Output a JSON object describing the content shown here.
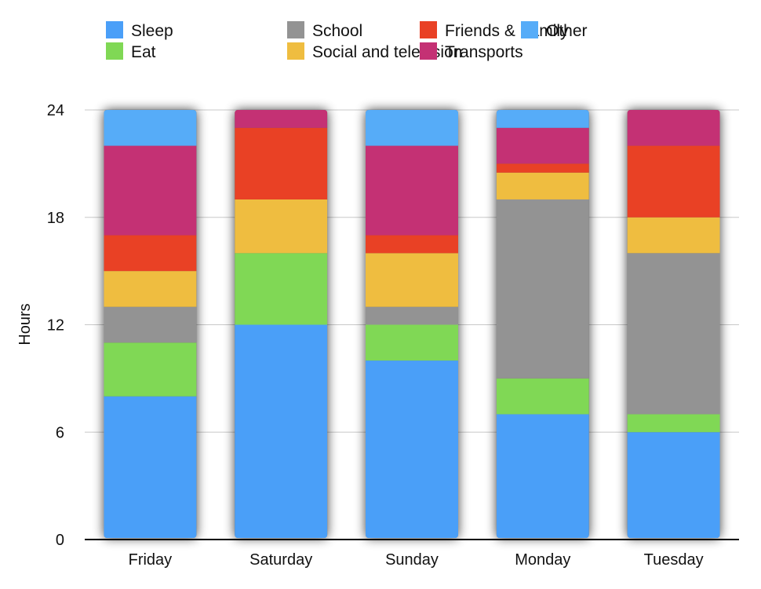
{
  "chart_data": {
    "type": "bar",
    "stacked": true,
    "categories": [
      "Friday",
      "Saturday",
      "Sunday",
      "Monday",
      "Tuesday"
    ],
    "series": [
      {
        "name": "Sleep",
        "color": "#4a9ff8",
        "values": [
          8,
          12,
          10,
          7,
          6
        ]
      },
      {
        "name": "Eat",
        "color": "#80d855",
        "values": [
          3,
          4,
          2,
          2,
          1
        ]
      },
      {
        "name": "School",
        "color": "#939393",
        "values": [
          2,
          0,
          1,
          10,
          9
        ]
      },
      {
        "name": "Social and television",
        "color": "#efbd40",
        "values": [
          2,
          3,
          3,
          1.5,
          2
        ]
      },
      {
        "name": "Friends & Family",
        "color": "#e94125",
        "values": [
          2,
          4,
          1,
          0.5,
          4
        ]
      },
      {
        "name": "Transports",
        "color": "#c43174",
        "values": [
          5,
          1,
          5,
          2,
          2
        ]
      },
      {
        "name": "Other",
        "color": "#56acf8",
        "values": [
          2,
          0,
          2,
          1,
          0
        ]
      }
    ],
    "xlabel": "",
    "ylabel": "Hours",
    "ylim": [
      0,
      24
    ],
    "yticks": [
      "0",
      "6",
      "12",
      "18",
      "24"
    ],
    "grid": true,
    "legend_position": "top"
  }
}
